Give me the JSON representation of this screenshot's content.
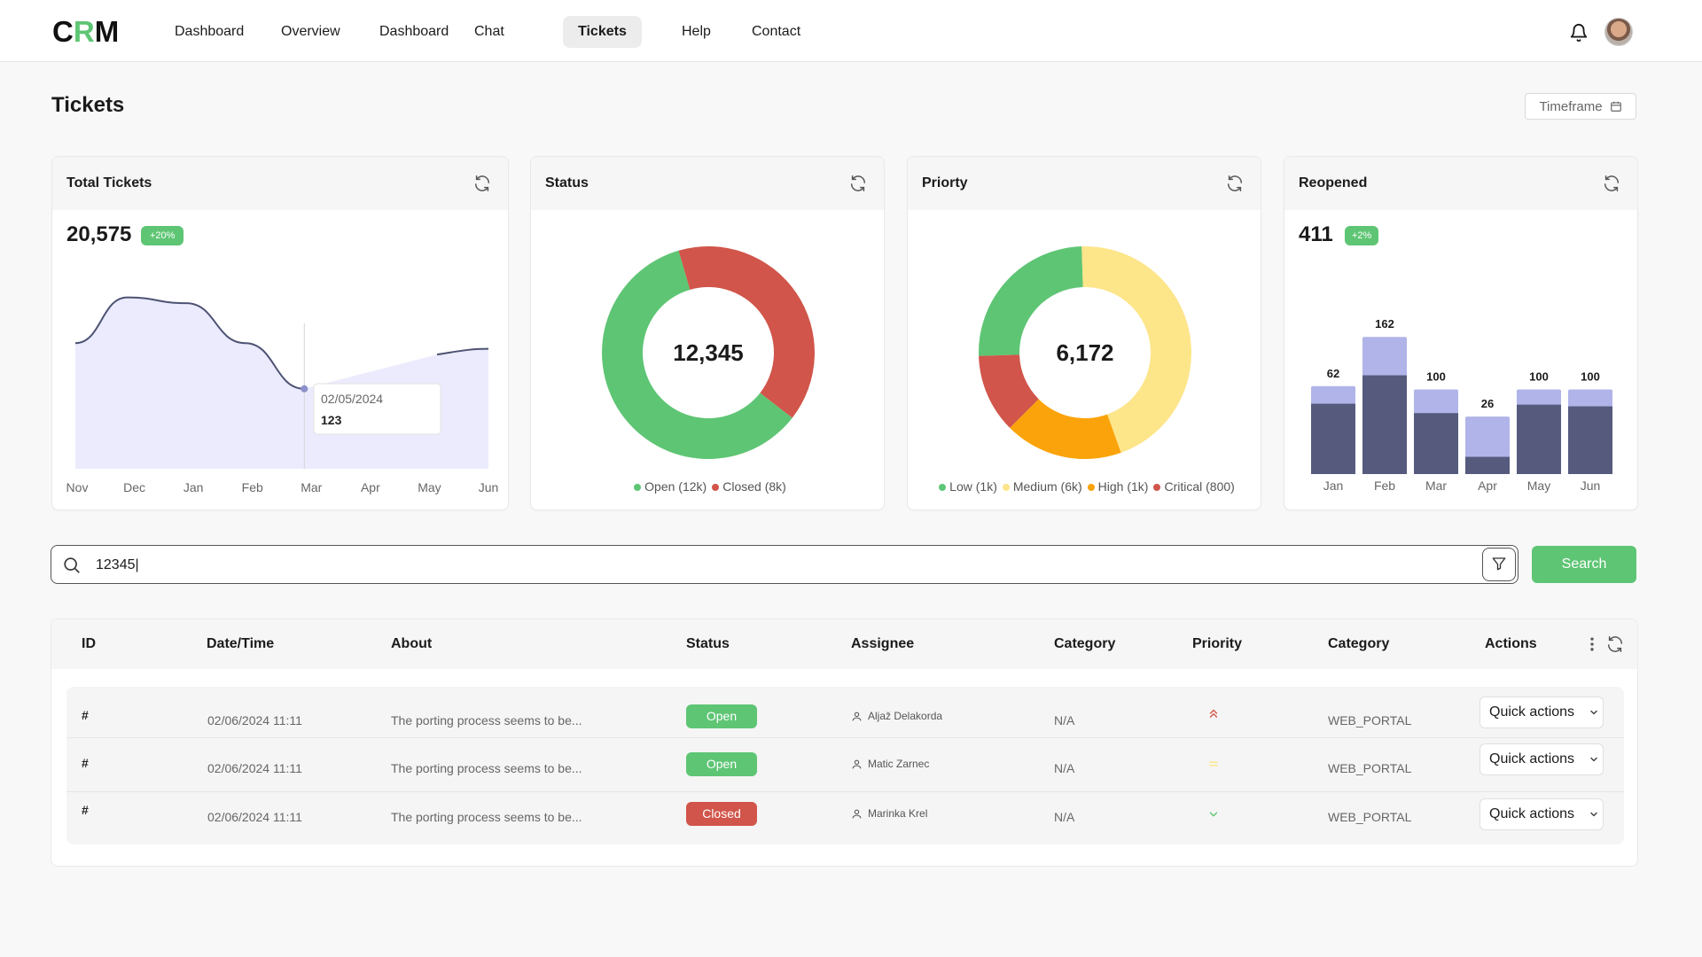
{
  "app": {
    "logo_prefix": "C",
    "logo_accent": "R",
    "logo_suffix": "M"
  },
  "nav": [
    {
      "label": "Dashboard",
      "active": false
    },
    {
      "label": "Overview",
      "active": false
    },
    {
      "label": "Dashboard",
      "active": false
    },
    {
      "label": "Chat",
      "active": false
    },
    {
      "label": "Tickets",
      "active": true
    },
    {
      "label": "Help",
      "active": false
    },
    {
      "label": "Contact",
      "active": false
    }
  ],
  "page": {
    "title": "Tickets",
    "timeframe_label": "Timeframe"
  },
  "cards": {
    "total": {
      "title": "Total Tickets",
      "value": "20,575",
      "badge": "+20%"
    },
    "status": {
      "title": "Status",
      "center": "12,345"
    },
    "priority": {
      "title": "Priorty",
      "center": "6,172"
    },
    "reopened": {
      "title": "Reopened",
      "value": "411",
      "badge": "+2%"
    }
  },
  "chart_data": [
    {
      "type": "area",
      "title": "Total Tickets",
      "categories": [
        "Nov",
        "Dec",
        "Jan",
        "Feb",
        "Mar",
        "Apr",
        "May",
        "Jun"
      ],
      "values": [
        110,
        150,
        145,
        110,
        70,
        null,
        100,
        105
      ],
      "tooltip": {
        "date": "02/05/2024",
        "value": "123"
      },
      "ylim": [
        0,
        180
      ]
    },
    {
      "type": "pie",
      "title": "Status",
      "center_label": "12,345",
      "slices": [
        {
          "label": "Open (12k)",
          "value": 12,
          "color": "#5ec574"
        },
        {
          "label": "Closed (8k)",
          "value": 8,
          "color": "#d1554a"
        }
      ]
    },
    {
      "type": "pie",
      "title": "Priorty",
      "center_label": "6,172",
      "slices": [
        {
          "label": "Low (1k)",
          "value": 25,
          "color": "#5ec574"
        },
        {
          "label": "Medium (6k)",
          "value": 45,
          "color": "#fde58a"
        },
        {
          "label": "High (1k)",
          "value": 18,
          "color": "#fba30a"
        },
        {
          "label": "Critical (800)",
          "value": 12,
          "color": "#d1554a"
        }
      ]
    },
    {
      "type": "bar",
      "title": "Reopened",
      "categories": [
        "Jan",
        "Feb",
        "Mar",
        "Apr",
        "May",
        "Jun"
      ],
      "values": [
        62,
        162,
        100,
        26,
        100,
        100
      ],
      "ylim": [
        0,
        180
      ]
    }
  ],
  "search": {
    "value": "12345|",
    "button_label": "Search"
  },
  "table": {
    "headers": [
      "ID",
      "Date/Time",
      "About",
      "Status",
      "Assignee",
      "Category",
      "Priority",
      "Category",
      "Actions"
    ],
    "rows": [
      {
        "id": "#",
        "datetime": "02/06/2024 11:11",
        "about": "The porting process seems to be...",
        "status": "Open",
        "status_color": "#5ec574",
        "assignee": "Aljaž Delakorda",
        "category": "N/A",
        "priority_icon": "double-chevron-up-icon",
        "category2": "WEB_PORTAL",
        "action": "Quick actions"
      },
      {
        "id": "#",
        "datetime": "02/06/2024 11:11",
        "about": "The porting process seems to be...",
        "status": "Open",
        "status_color": "#5ec574",
        "assignee": "Matic Zarnec",
        "category": "N/A",
        "priority_icon": "equals-icon",
        "category2": "WEB_PORTAL",
        "action": "Quick actions"
      },
      {
        "id": "#",
        "datetime": "02/06/2024 11:11",
        "about": "The porting process seems to be...",
        "status": "Closed",
        "status_color": "#d1554a",
        "assignee": "Marinka Krel",
        "category": "N/A",
        "priority_icon": "chevron-down-icon",
        "category2": "WEB_PORTAL",
        "action": "Quick actions"
      }
    ]
  },
  "colors": {
    "accent": "#5ec574",
    "danger": "#d1554a",
    "bar_dark": "#565b7e",
    "bar_light": "#b0b4e8",
    "area_fill": "#ebebfd",
    "area_line": "#4d5273"
  }
}
